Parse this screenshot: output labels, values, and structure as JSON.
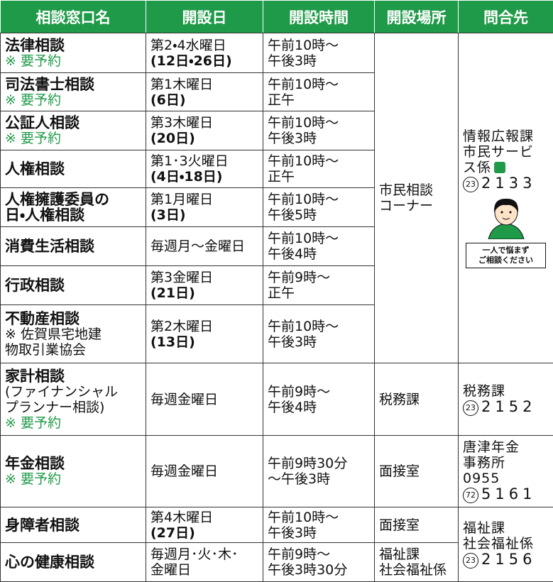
{
  "table": {
    "header": [
      "相談窓口名",
      "開設日",
      "開設時間",
      "開設場所",
      "問合先"
    ],
    "rows": [
      {
        "name": [
          "法律相談"
        ],
        "note": "※ 要予約",
        "day": [
          "第2・4水曜日",
          "(12日・26日)"
        ],
        "time": [
          "午前10時～",
          "午後3時"
        ],
        "place": [
          "市民相談",
          "コーナー"
        ],
        "contact": {
          "lines": [
            "情報広報課",
            "市民サービ",
            "ス係"
          ],
          "phone": {
            "circ": "23",
            "num": "2133"
          },
          "sign": [
            "一人で悩まず",
            "ご相談ください"
          ]
        }
      },
      {
        "name": [
          "司法書士相談"
        ],
        "note": "※ 要予約",
        "day": [
          "第1木曜日",
          "(6日)"
        ],
        "time": [
          "午前10時～",
          "正午"
        ]
      },
      {
        "name": [
          "公証人相談"
        ],
        "note": "※ 要予約",
        "day": [
          "第3木曜日",
          "(20日)"
        ],
        "time": [
          "午前10時～",
          "午後3時"
        ]
      },
      {
        "name": [
          "人権相談"
        ],
        "day": [
          "第1･3火曜日",
          "(4日・18日)"
        ],
        "time": [
          "午前10時～",
          "正午"
        ]
      },
      {
        "name": [
          "人権擁護委員の",
          "日・人権相談"
        ],
        "day": [
          "第1月曜日",
          "(3日)"
        ],
        "time": [
          "午前10時～",
          "午後5時"
        ]
      },
      {
        "name": [
          "消費生活相談"
        ],
        "day": [
          "毎週月～金曜日"
        ],
        "time": [
          "午前10時～",
          "午後4時"
        ]
      },
      {
        "name": [
          "行政相談"
        ],
        "day": [
          "第3金曜日",
          "(21日)"
        ],
        "time": [
          "午前9時～",
          "正午"
        ]
      },
      {
        "name": [
          "不動産相談"
        ],
        "sub": [
          "※ 佐賀県宅地建",
          "物取引業協会"
        ],
        "day": [
          "第2木曜日",
          "(13日)"
        ],
        "time": [
          "午前10時～",
          "午後3時"
        ]
      },
      {
        "name": [
          "家計相談"
        ],
        "sub": [
          "(ファイナンシャル",
          "プランナー相談)"
        ],
        "note": "※ 要予約",
        "day": [
          "毎週金曜日"
        ],
        "time": [
          "午前9時～",
          "午後4時"
        ],
        "place": [
          "税務課"
        ],
        "contact": {
          "lines": [
            "税務課"
          ],
          "phone": {
            "circ": "23",
            "num": "2152"
          }
        }
      },
      {
        "name": [
          "年金相談"
        ],
        "note": "※ 要予約",
        "day": [
          "毎週金曜日"
        ],
        "time": [
          "午前9時30分",
          "～午後3時"
        ],
        "place": [
          "面接室"
        ],
        "contact": {
          "lines": [
            "唐津年金",
            "事務所",
            "0955"
          ],
          "phone": {
            "circ": "72",
            "num": "5161"
          }
        }
      },
      {
        "name": [
          "身障者相談"
        ],
        "day": [
          "第4木曜日",
          "(27日)"
        ],
        "time": [
          "午前10時～",
          "午後3時"
        ],
        "place": [
          "面接室"
        ],
        "contact": {
          "lines": [
            "福祉課",
            "社会福祉係"
          ],
          "phone": {
            "circ": "23",
            "num": "2156"
          }
        }
      },
      {
        "name": [
          "心の健康相談"
        ],
        "day": [
          "毎週月･火･木･",
          "金曜日"
        ],
        "time": [
          "午前9時～",
          "午後3時30分"
        ],
        "place": [
          "福祉課",
          "社会福祉係"
        ]
      }
    ]
  }
}
